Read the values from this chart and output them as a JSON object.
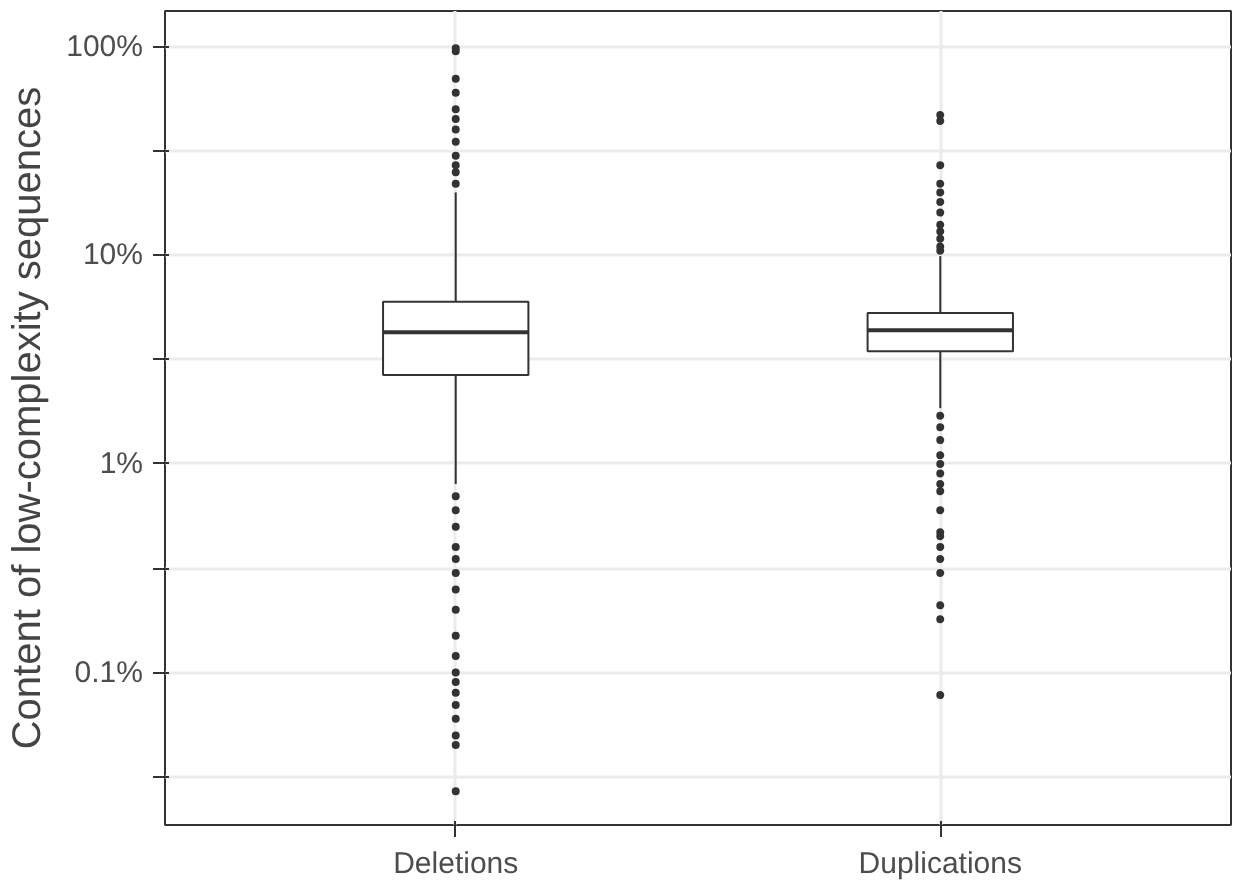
{
  "chart_data": {
    "type": "box",
    "ylabel": "Content of low-complexity sequences",
    "categories": [
      "Deletions",
      "Duplications"
    ],
    "boxes": [
      {
        "low": 0.8,
        "q1": 2.67,
        "median": 4.27,
        "q3": 5.98,
        "high": 20,
        "outliers": [
          98,
          95,
          70,
          60,
          50,
          45,
          40,
          35,
          30,
          27,
          25,
          22,
          0.7,
          0.6,
          0.5,
          0.4,
          0.35,
          0.3,
          0.25,
          0.2,
          0.15,
          0.12,
          0.1,
          0.09,
          0.08,
          0.07,
          0.06,
          0.05,
          0.045,
          0.027
        ]
      },
      {
        "low": 1.85,
        "q1": 3.47,
        "median": 4.37,
        "q3": 5.28,
        "high": 9.9,
        "outliers": [
          47,
          44,
          27,
          22,
          20,
          18,
          16,
          14,
          13,
          12,
          11,
          10.5,
          1.7,
          1.5,
          1.3,
          1.1,
          1.0,
          0.9,
          0.8,
          0.74,
          0.6,
          0.47,
          0.45,
          0.4,
          0.35,
          0.3,
          0.21,
          0.18,
          0.078
        ]
      }
    ],
    "log": "y",
    "ylim": [
      0.0186,
      148
    ],
    "yticks": [
      {
        "value": 0.0316,
        "label": null
      },
      {
        "value": 0.1,
        "label": "0.1%"
      },
      {
        "value": 0.316,
        "label": null
      },
      {
        "value": 1,
        "label": "1%"
      },
      {
        "value": 3.16,
        "label": null
      },
      {
        "value": 10,
        "label": "10%"
      },
      {
        "value": 31.6,
        "label": null
      },
      {
        "value": 100,
        "label": "100%"
      }
    ],
    "grid": true
  }
}
